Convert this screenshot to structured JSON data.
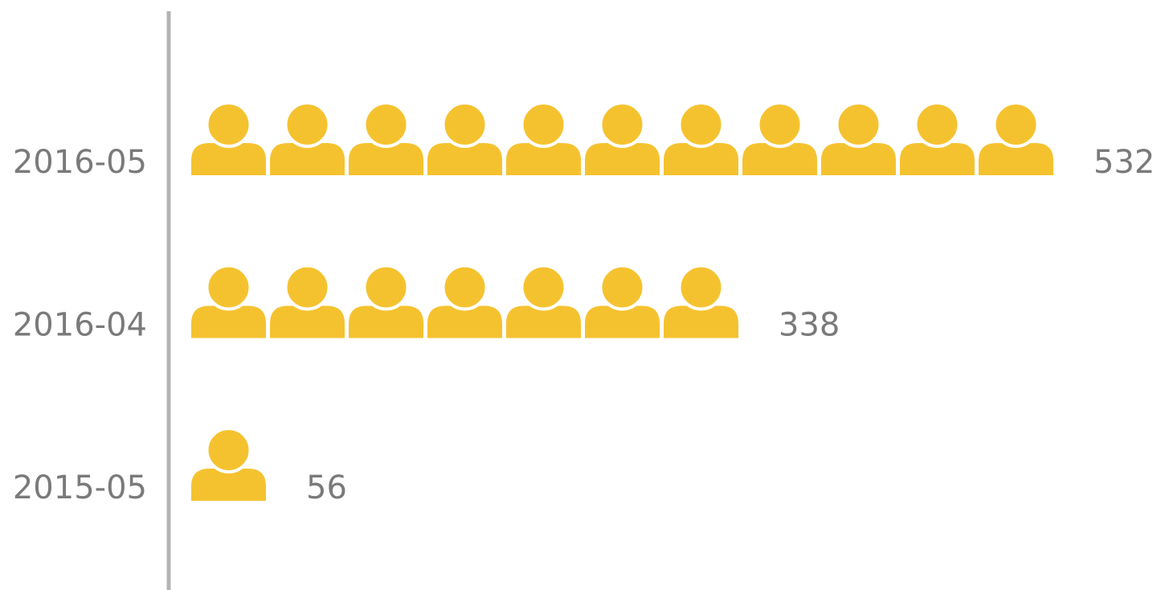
{
  "chart_data": {
    "type": "pictograph",
    "categories": [
      "2016-05",
      "2016-04",
      "2015-05"
    ],
    "values": [
      532,
      338,
      56
    ],
    "color": "#f5c22f"
  }
}
